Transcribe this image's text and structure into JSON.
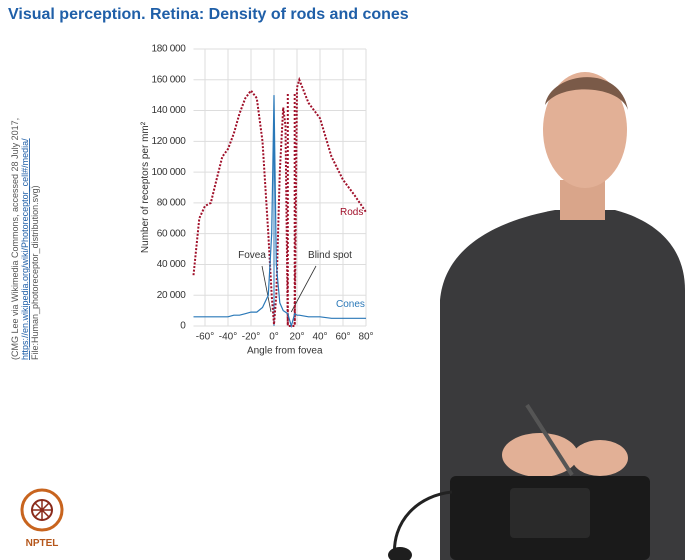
{
  "slide_title": "Visual perception. Retina: Density of rods and cones",
  "credit": [
    "(CMG Lee via Wikimedia Commons, accessed 28 July 2017,",
    "https://en.wikipedia.org/wiki/Photoreceptor_cell#/media/",
    "File:Human_photoreceptor_distribution.svg)"
  ],
  "logo_text": "NPTEL",
  "chart_data": {
    "type": "line",
    "ylabel": "Number of receptors per mm²",
    "xlabel": "Angle from fovea",
    "annotations": [
      "Fovea",
      "Blind spot"
    ],
    "x": [
      -70,
      -65,
      -60,
      -55,
      -50,
      -45,
      -40,
      -35,
      -30,
      -25,
      -20,
      -15,
      -10,
      -5,
      -2,
      0,
      2,
      5,
      8,
      10,
      12,
      15,
      18,
      20,
      22,
      30,
      40,
      50,
      60,
      70,
      80
    ],
    "series": [
      {
        "name": "Rods",
        "color": "#a0102a",
        "values": [
          33000,
          70000,
          78000,
          80000,
          95000,
          110000,
          115000,
          125000,
          138000,
          148000,
          153000,
          148000,
          120000,
          60000,
          20000,
          1000,
          20000,
          100000,
          142000,
          130000,
          0,
          0,
          0,
          155000,
          160000,
          145000,
          135000,
          110000,
          95000,
          85000,
          74000
        ]
      },
      {
        "name": "Cones",
        "color": "#2a78b8",
        "values": [
          6000,
          6000,
          6000,
          6000,
          6000,
          6000,
          6000,
          7000,
          7000,
          8000,
          9000,
          9000,
          12000,
          20000,
          60000,
          150000,
          40000,
          15000,
          10000,
          9000,
          8000,
          0,
          8000,
          7000,
          7000,
          6000,
          6000,
          5000,
          5000,
          5000,
          5000
        ]
      }
    ],
    "xlim": [
      -70,
      80
    ],
    "xticks": [
      {
        "value": -60,
        "label": "-60°"
      },
      {
        "value": -40,
        "label": "-40°"
      },
      {
        "value": -20,
        "label": "-20°"
      },
      {
        "value": 0,
        "label": "0°"
      },
      {
        "value": 20,
        "label": "20°"
      },
      {
        "value": 40,
        "label": "40°"
      },
      {
        "value": 60,
        "label": "60°"
      },
      {
        "value": 80,
        "label": "80°"
      }
    ],
    "ylim": [
      0,
      180000
    ],
    "yticks": [
      0,
      {
        "value": 20000,
        "label": "20 000"
      },
      {
        "value": 40000,
        "label": "40 000"
      },
      {
        "value": 60000,
        "label": "60 000"
      },
      {
        "value": 80000,
        "label": "80 000"
      },
      {
        "value": 100000,
        "label": "100 000"
      },
      {
        "value": 120000,
        "label": "120 000"
      },
      {
        "value": 140000,
        "label": "140 000"
      },
      {
        "value": 160000,
        "label": "160 000"
      },
      {
        "value": 180000,
        "label": "180 000"
      }
    ],
    "grid": true
  }
}
